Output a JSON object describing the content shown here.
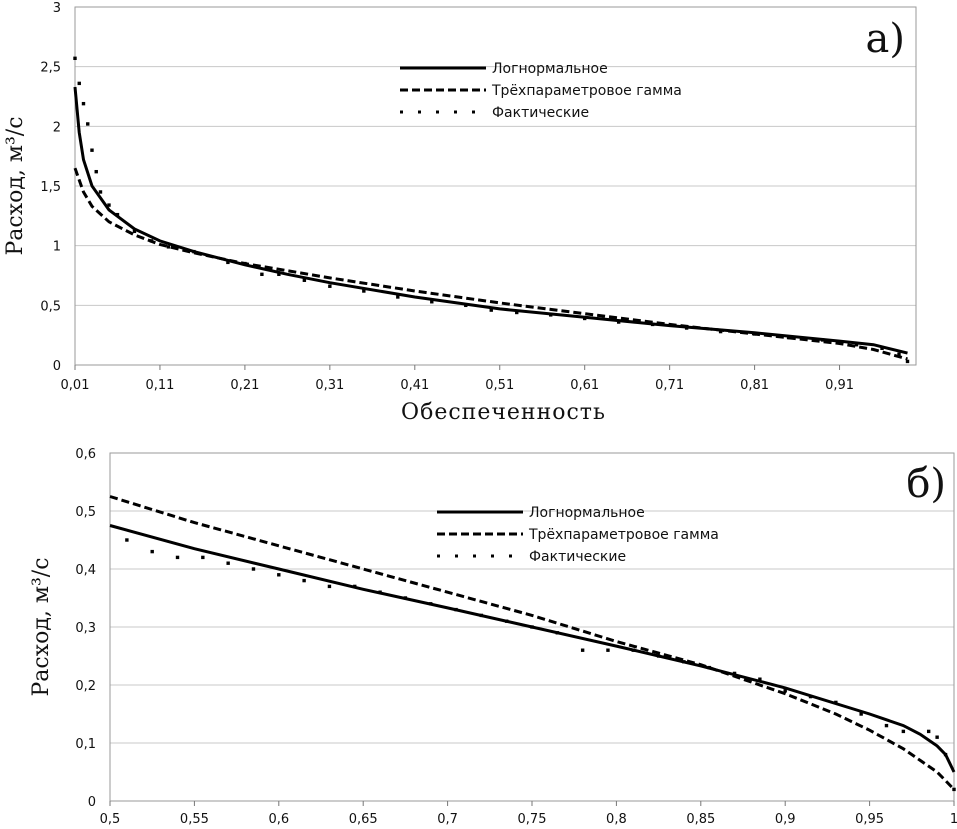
{
  "chart_data": [
    {
      "type": "line",
      "panel_label": "а)",
      "xlabel": "Обеспеченность",
      "ylabel": "Расход, м³/с",
      "xlim": [
        0.01,
        1.0
      ],
      "ylim": [
        0,
        3
      ],
      "x_ticks": [
        0.01,
        0.11,
        0.21,
        0.31,
        0.41,
        0.51,
        0.61,
        0.71,
        0.81,
        0.91
      ],
      "x_tick_labels": [
        "0,01",
        "0,11",
        "0,21",
        "0,31",
        "0,41",
        "0,51",
        "0,61",
        "0,71",
        "0,81",
        "0,91"
      ],
      "y_ticks": [
        0,
        0.5,
        1,
        1.5,
        2,
        2.5,
        3
      ],
      "y_tick_labels": [
        "0",
        "0,5",
        "1",
        "1,5",
        "2",
        "2,5",
        "3"
      ],
      "legend": [
        "Логнормальное",
        "Трёхпараметровое гамма",
        "Фактические"
      ],
      "series": [
        {
          "name": "Логнормальное",
          "style": "solid",
          "x": [
            0.01,
            0.015,
            0.02,
            0.03,
            0.05,
            0.08,
            0.11,
            0.15,
            0.21,
            0.26,
            0.31,
            0.41,
            0.51,
            0.61,
            0.71,
            0.81,
            0.91,
            0.95,
            0.99
          ],
          "y": [
            2.33,
            1.95,
            1.72,
            1.5,
            1.3,
            1.14,
            1.04,
            0.95,
            0.84,
            0.76,
            0.69,
            0.57,
            0.47,
            0.4,
            0.33,
            0.27,
            0.2,
            0.17,
            0.1
          ]
        },
        {
          "name": "Трёхпараметровое гамма",
          "style": "dashed",
          "x": [
            0.01,
            0.015,
            0.02,
            0.03,
            0.05,
            0.08,
            0.11,
            0.15,
            0.21,
            0.26,
            0.31,
            0.41,
            0.51,
            0.61,
            0.71,
            0.81,
            0.91,
            0.95,
            0.99
          ],
          "y": [
            1.65,
            1.55,
            1.45,
            1.33,
            1.2,
            1.09,
            1.01,
            0.94,
            0.85,
            0.79,
            0.73,
            0.62,
            0.52,
            0.43,
            0.34,
            0.26,
            0.18,
            0.13,
            0.05
          ]
        },
        {
          "name": "Фактические",
          "style": "dotted",
          "x": [
            0.01,
            0.015,
            0.02,
            0.025,
            0.03,
            0.035,
            0.04,
            0.05,
            0.06,
            0.08,
            0.1,
            0.12,
            0.15,
            0.19,
            0.21,
            0.23,
            0.25,
            0.28,
            0.31,
            0.35,
            0.39,
            0.43,
            0.47,
            0.5,
            0.53,
            0.57,
            0.61,
            0.65,
            0.69,
            0.73,
            0.77,
            0.81,
            0.85,
            0.89,
            0.93,
            0.96,
            0.98,
            0.99
          ],
          "y": [
            2.57,
            2.36,
            2.19,
            2.02,
            1.8,
            1.62,
            1.45,
            1.34,
            1.26,
            1.12,
            1.04,
            0.99,
            0.95,
            0.86,
            0.85,
            0.76,
            0.76,
            0.71,
            0.66,
            0.62,
            0.57,
            0.53,
            0.5,
            0.46,
            0.44,
            0.42,
            0.39,
            0.36,
            0.34,
            0.31,
            0.28,
            0.26,
            0.23,
            0.21,
            0.17,
            0.14,
            0.09,
            0.03
          ]
        }
      ]
    },
    {
      "type": "line",
      "panel_label": "б)",
      "xlabel": "",
      "ylabel": "Расход, м³/с",
      "xlim": [
        0.5,
        1.0
      ],
      "ylim": [
        0,
        0.6
      ],
      "x_ticks": [
        0.5,
        0.55,
        0.6,
        0.65,
        0.7,
        0.75,
        0.8,
        0.85,
        0.9,
        0.95,
        1.0
      ],
      "x_tick_labels": [
        "0,5",
        "0,55",
        "0,6",
        "0,65",
        "0,7",
        "0,75",
        "0,8",
        "0,85",
        "0,9",
        "0,95",
        "1"
      ],
      "y_ticks": [
        0,
        0.1,
        0.2,
        0.3,
        0.4,
        0.5,
        0.6
      ],
      "y_tick_labels": [
        "0",
        "0,1",
        "0,2",
        "0,3",
        "0,4",
        "0,5",
        "0,6"
      ],
      "legend": [
        "Логнормальное",
        "Трёхпараметровое гамма",
        "Фактические"
      ],
      "series": [
        {
          "name": "Логнормальное",
          "style": "solid",
          "x": [
            0.5,
            0.55,
            0.6,
            0.65,
            0.7,
            0.75,
            0.8,
            0.85,
            0.9,
            0.95,
            0.97,
            0.98,
            0.99,
            0.995,
            1.0
          ],
          "y": [
            0.475,
            0.435,
            0.4,
            0.365,
            0.333,
            0.3,
            0.267,
            0.233,
            0.195,
            0.15,
            0.13,
            0.115,
            0.095,
            0.08,
            0.05
          ]
        },
        {
          "name": "Трёхпараметровое гамма",
          "style": "dashed",
          "x": [
            0.5,
            0.55,
            0.6,
            0.65,
            0.7,
            0.75,
            0.8,
            0.85,
            0.9,
            0.93,
            0.95,
            0.97,
            0.98,
            0.99,
            0.995,
            1.0
          ],
          "y": [
            0.525,
            0.48,
            0.44,
            0.4,
            0.36,
            0.32,
            0.275,
            0.235,
            0.185,
            0.15,
            0.122,
            0.09,
            0.07,
            0.05,
            0.035,
            0.02
          ]
        },
        {
          "name": "Фактические",
          "style": "dotted",
          "x": [
            0.51,
            0.525,
            0.54,
            0.555,
            0.57,
            0.585,
            0.6,
            0.615,
            0.63,
            0.645,
            0.66,
            0.675,
            0.69,
            0.705,
            0.72,
            0.735,
            0.75,
            0.765,
            0.78,
            0.795,
            0.81,
            0.825,
            0.84,
            0.855,
            0.87,
            0.885,
            0.9,
            0.915,
            0.93,
            0.945,
            0.96,
            0.97,
            0.985,
            0.99,
            0.995,
            1.0
          ],
          "y": [
            0.45,
            0.43,
            0.42,
            0.42,
            0.41,
            0.4,
            0.39,
            0.38,
            0.37,
            0.37,
            0.36,
            0.35,
            0.34,
            0.33,
            0.32,
            0.31,
            0.3,
            0.29,
            0.26,
            0.26,
            0.26,
            0.25,
            0.24,
            0.23,
            0.22,
            0.21,
            0.19,
            0.18,
            0.17,
            0.15,
            0.13,
            0.12,
            0.12,
            0.11,
            0.08,
            0.02
          ]
        }
      ]
    }
  ]
}
